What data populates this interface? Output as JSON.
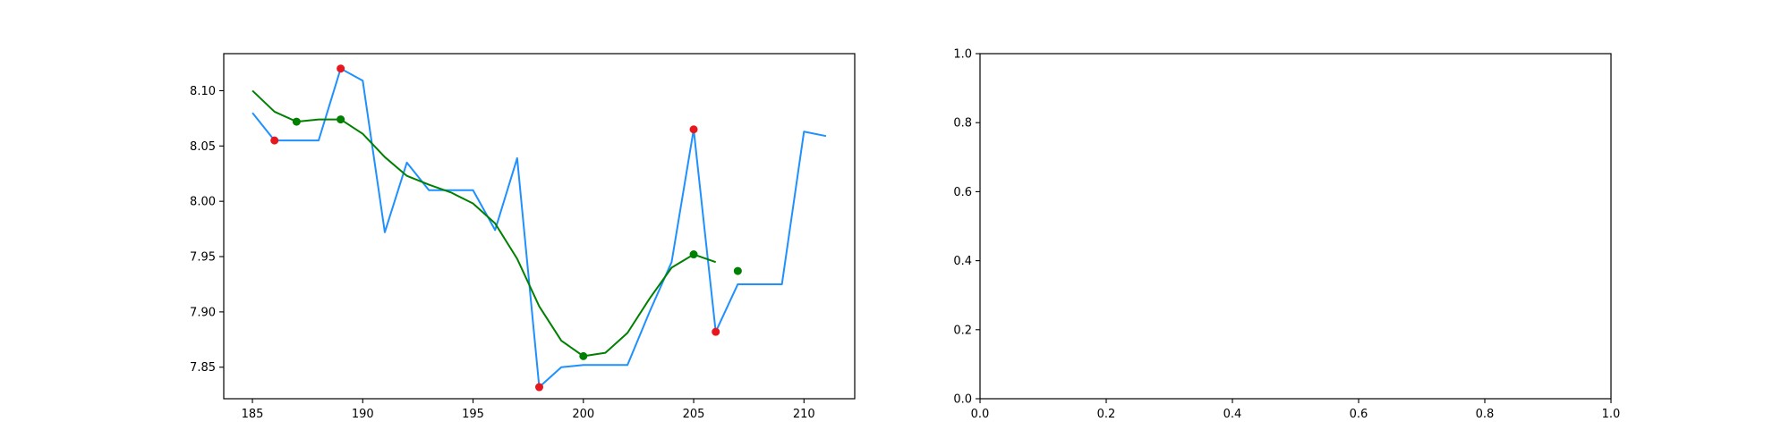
{
  "chart_data": [
    {
      "type": "line",
      "title": "",
      "xlabel": "",
      "ylabel": "",
      "xlim": [
        183.7,
        212.3
      ],
      "ylim": [
        7.8215,
        8.1335
      ],
      "xticks": [
        185,
        190,
        195,
        200,
        205,
        210
      ],
      "xtick_labels": [
        "185",
        "190",
        "195",
        "200",
        "205",
        "210"
      ],
      "yticks": [
        7.85,
        7.9,
        7.95,
        8.0,
        8.05,
        8.1
      ],
      "ytick_labels": [
        "7.85",
        "7.90",
        "7.95",
        "8.00",
        "8.05",
        "8.10"
      ],
      "grid": false,
      "legend": "none",
      "series": [
        {
          "kind": "line",
          "color": "#1e90ff",
          "x": [
            185,
            186,
            187,
            188,
            189,
            190,
            191,
            192,
            193,
            194,
            195,
            196,
            197,
            198,
            199,
            200,
            201,
            202,
            203,
            204,
            205,
            206,
            207,
            208,
            209,
            210,
            211
          ],
          "y": [
            8.08,
            8.055,
            8.055,
            8.055,
            8.12,
            8.109,
            7.972,
            8.035,
            8.01,
            8.01,
            8.01,
            7.974,
            8.039,
            7.832,
            7.85,
            7.852,
            7.852,
            7.852,
            7.9,
            7.945,
            8.065,
            7.882,
            7.925,
            7.925,
            7.925,
            8.063,
            8.059
          ]
        },
        {
          "kind": "line",
          "color": "#008000",
          "x": [
            185,
            186,
            187,
            188,
            189,
            190,
            191,
            192,
            193,
            194,
            195,
            196,
            197,
            198,
            199,
            200,
            201,
            202,
            203,
            204,
            205,
            206
          ],
          "y": [
            8.1,
            8.081,
            8.072,
            8.074,
            8.074,
            8.061,
            8.04,
            8.023,
            8.015,
            8.008,
            7.998,
            7.98,
            7.948,
            7.905,
            7.874,
            7.86,
            7.863,
            7.881,
            7.912,
            7.94,
            7.952,
            7.945
          ]
        },
        {
          "kind": "scatter",
          "color": "#e8171d",
          "x": [
            186,
            189,
            198,
            205,
            206
          ],
          "y": [
            8.055,
            8.12,
            7.832,
            8.065,
            7.882
          ]
        },
        {
          "kind": "scatter",
          "color": "#008000",
          "x": [
            187,
            189,
            200,
            205,
            207
          ],
          "y": [
            8.072,
            8.074,
            7.86,
            7.952,
            7.937
          ]
        }
      ]
    },
    {
      "type": "line",
      "title": "",
      "xlabel": "",
      "ylabel": "",
      "xlim": [
        0,
        1
      ],
      "ylim": [
        0,
        1
      ],
      "xticks": [
        0,
        0.2,
        0.4,
        0.6,
        0.8,
        1.0
      ],
      "xtick_labels": [
        "0.0",
        "0.2",
        "0.4",
        "0.6",
        "0.8",
        "1.0"
      ],
      "yticks": [
        0,
        0.2,
        0.4,
        0.6,
        0.8,
        1.0
      ],
      "ytick_labels": [
        "0.0",
        "0.2",
        "0.4",
        "0.6",
        "0.8",
        "1.0"
      ],
      "grid": false,
      "legend": "none",
      "series": []
    }
  ]
}
